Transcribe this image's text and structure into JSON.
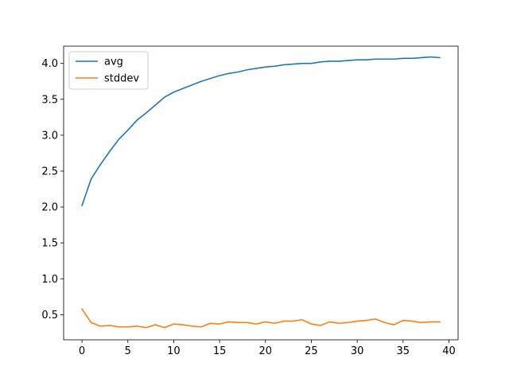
{
  "chart_data": {
    "type": "line",
    "title": "",
    "xlabel": "",
    "ylabel": "",
    "xlim": [
      -2,
      41
    ],
    "ylim": [
      0.15,
      4.24
    ],
    "x_ticks": [
      0,
      5,
      10,
      15,
      20,
      25,
      30,
      35,
      40
    ],
    "y_ticks": [
      0.5,
      1.0,
      1.5,
      2.0,
      2.5,
      3.0,
      3.5,
      4.0
    ],
    "y_tick_labels": [
      "0.5",
      "1.0",
      "1.5",
      "2.0",
      "2.5",
      "3.0",
      "3.5",
      "4.0"
    ],
    "grid": false,
    "legend_position": "upper-left",
    "x": [
      0,
      1,
      2,
      3,
      4,
      5,
      6,
      7,
      8,
      9,
      10,
      11,
      12,
      13,
      14,
      15,
      16,
      17,
      18,
      19,
      20,
      21,
      22,
      23,
      24,
      25,
      26,
      27,
      28,
      29,
      30,
      31,
      32,
      33,
      34,
      35,
      36,
      37,
      38,
      39
    ],
    "series": [
      {
        "name": "avg",
        "color": "#1f77b4",
        "values": [
          2.02,
          2.39,
          2.59,
          2.77,
          2.94,
          3.07,
          3.21,
          3.31,
          3.42,
          3.53,
          3.6,
          3.65,
          3.7,
          3.75,
          3.79,
          3.83,
          3.86,
          3.88,
          3.91,
          3.93,
          3.95,
          3.96,
          3.98,
          3.99,
          4.0,
          4.0,
          4.02,
          4.03,
          4.03,
          4.04,
          4.05,
          4.05,
          4.06,
          4.06,
          4.06,
          4.07,
          4.07,
          4.08,
          4.09,
          4.08
        ]
      },
      {
        "name": "stddev",
        "color": "#ff7f0e",
        "values": [
          0.58,
          0.39,
          0.34,
          0.35,
          0.33,
          0.33,
          0.34,
          0.32,
          0.36,
          0.32,
          0.37,
          0.36,
          0.34,
          0.33,
          0.38,
          0.37,
          0.4,
          0.39,
          0.39,
          0.37,
          0.4,
          0.38,
          0.41,
          0.41,
          0.43,
          0.37,
          0.35,
          0.4,
          0.38,
          0.39,
          0.41,
          0.42,
          0.44,
          0.39,
          0.36,
          0.42,
          0.41,
          0.39,
          0.4,
          0.4
        ]
      }
    ]
  }
}
